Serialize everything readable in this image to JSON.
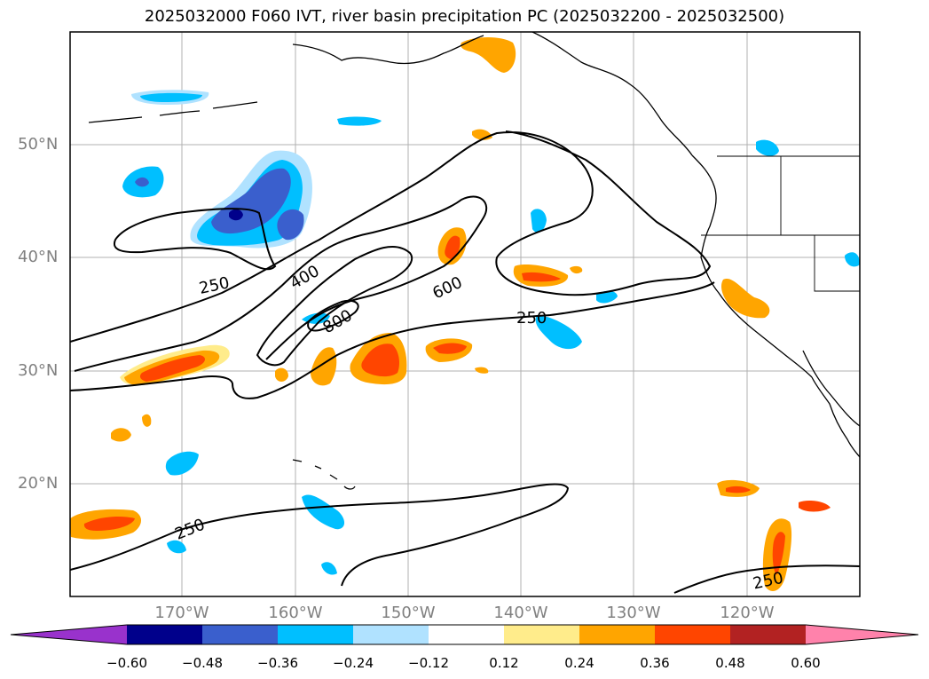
{
  "title": "2025032000 F060 IVT, river basin precipitation PC (2025032200 - 2025032500)",
  "lat_labels": [
    "50°N",
    "40°N",
    "30°N",
    "20°N"
  ],
  "lon_labels": [
    "170°W",
    "160°W",
    "150°W",
    "140°W",
    "130°W",
    "120°W"
  ],
  "contour_labels": [
    "250",
    "400",
    "600",
    "800",
    "250",
    "250",
    "250"
  ],
  "colorbar": {
    "colors": [
      "#9932cc",
      "#00008b",
      "#3a5fcd",
      "#00bfff",
      "#b0e2ff",
      "#ffffff",
      "#ffec8b",
      "#ffa500",
      "#ff4500",
      "#b22222",
      "#ff82ab"
    ],
    "tick_labels": [
      "−0.60",
      "−0.48",
      "−0.36",
      "−0.24",
      "−0.12",
      "0.12",
      "0.24",
      "0.36",
      "0.48",
      "0.60"
    ]
  },
  "colors": {
    "grid": "#b0b0b0",
    "coast": "#000000",
    "label_gray": "#808080"
  }
}
